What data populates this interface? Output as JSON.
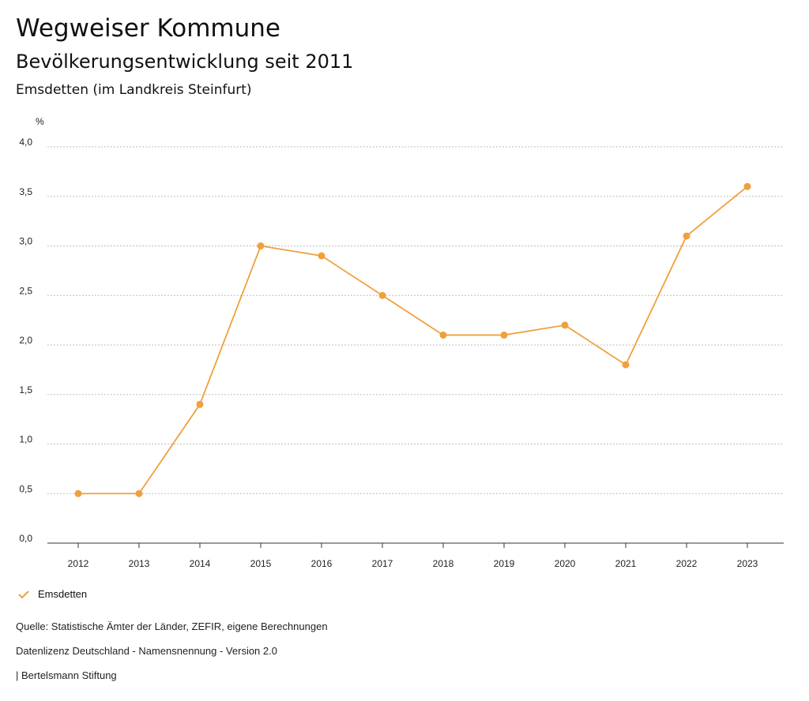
{
  "header": {
    "title": "Wegweiser Kommune",
    "subtitle": "Bevölkerungsentwicklung seit 2011",
    "region": "Emsdetten (im Landkreis Steinfurt)"
  },
  "colors": {
    "series": "#F0A03C",
    "grid": "#bdbdbd"
  },
  "chart_data": {
    "type": "line",
    "title": "Bevölkerungsentwicklung seit 2011",
    "ylabel": "%",
    "xlabel": "",
    "categories": [
      "2012",
      "2013",
      "2014",
      "2015",
      "2016",
      "2017",
      "2018",
      "2019",
      "2020",
      "2021",
      "2022",
      "2023"
    ],
    "series": [
      {
        "name": "Emsdetten",
        "values": [
          0.5,
          0.5,
          1.4,
          3.0,
          2.9,
          2.5,
          2.1,
          2.1,
          2.2,
          1.8,
          3.1,
          3.6
        ]
      }
    ],
    "ylim": [
      0,
      4
    ],
    "yticks": [
      "0,0",
      "0,5",
      "1,0",
      "1,5",
      "2,0",
      "2,5",
      "3,0",
      "3,5",
      "4,0"
    ],
    "ytick_values": [
      0,
      0.5,
      1,
      1.5,
      2,
      2.5,
      3,
      3.5,
      4
    ],
    "grid": true,
    "legend": "bottom-left"
  },
  "legend": {
    "label": "Emsdetten",
    "icon": "check-icon"
  },
  "footer": {
    "source": "Quelle: Statistische Ämter der Länder, ZEFIR, eigene Berechnungen",
    "license": "Datenlizenz Deutschland - Namensnennung - Version 2.0",
    "publisher": "| Bertelsmann Stiftung"
  }
}
